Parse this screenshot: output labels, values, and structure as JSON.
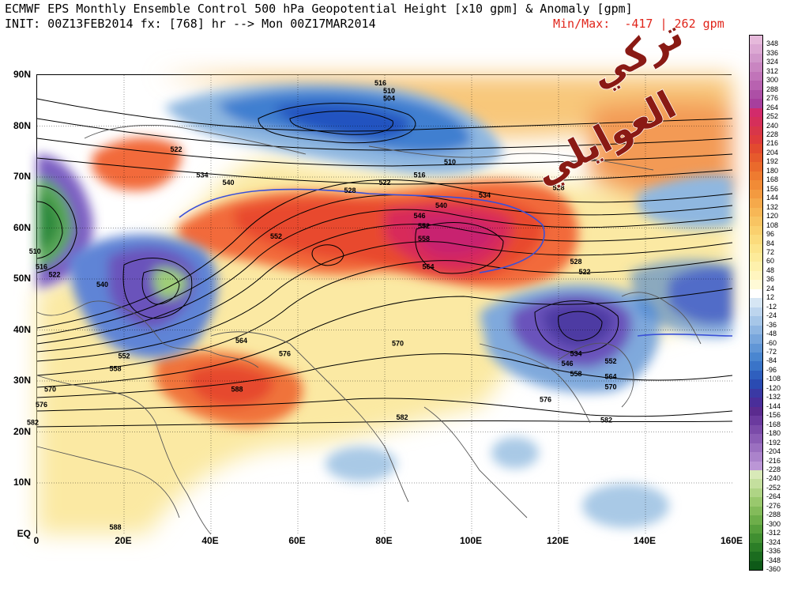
{
  "header": {
    "title": "ECMWF EPS Monthly Ensemble Control 500 hPa Geopotential Height [x10 gpm] & Anomaly [gpm]",
    "init_line": "INIT: 00Z13FEB2014 fx: [768] hr --> Mon 00Z17MAR2014",
    "minmax_label": "Min/Max:",
    "min_value": "-417",
    "separator": "|",
    "max_value": "262 gpm"
  },
  "axes": {
    "lat_labels": [
      "90N",
      "80N",
      "70N",
      "60N",
      "50N",
      "40N",
      "30N",
      "20N",
      "10N",
      "EQ"
    ],
    "lon_labels": [
      "0",
      "20E",
      "40E",
      "60E",
      "80E",
      "100E",
      "120E",
      "140E",
      "160E"
    ]
  },
  "contour_labels": [
    {
      "text": "516",
      "lon": 79,
      "lat": 88.5
    },
    {
      "text": "510",
      "lon": 81,
      "lat": 87
    },
    {
      "text": "504",
      "lon": 81,
      "lat": 85.5
    },
    {
      "text": "522",
      "lon": 32,
      "lat": 75.5
    },
    {
      "text": "534",
      "lon": 38,
      "lat": 70.5
    },
    {
      "text": "540",
      "lon": 44,
      "lat": 69
    },
    {
      "text": "528",
      "lon": 72,
      "lat": 67.5
    },
    {
      "text": "522",
      "lon": 80,
      "lat": 69
    },
    {
      "text": "516",
      "lon": 88,
      "lat": 70.5
    },
    {
      "text": "510",
      "lon": 95,
      "lat": 73
    },
    {
      "text": "534",
      "lon": 103,
      "lat": 66.5
    },
    {
      "text": "528",
      "lon": 120,
      "lat": 68
    },
    {
      "text": "540",
      "lon": 93,
      "lat": 64.5
    },
    {
      "text": "546",
      "lon": 88,
      "lat": 62.5
    },
    {
      "text": "552",
      "lon": 89,
      "lat": 60.5
    },
    {
      "text": "558",
      "lon": 89,
      "lat": 58
    },
    {
      "text": "552",
      "lon": 55,
      "lat": 58.5
    },
    {
      "text": "564",
      "lon": 90,
      "lat": 52.5
    },
    {
      "text": "528",
      "lon": 124,
      "lat": 53.5
    },
    {
      "text": "522",
      "lon": 126,
      "lat": 51.5
    },
    {
      "text": "510",
      "lon": -0.5,
      "lat": 55.5
    },
    {
      "text": "516",
      "lon": 1,
      "lat": 52.5
    },
    {
      "text": "522",
      "lon": 4,
      "lat": 51
    },
    {
      "text": "540",
      "lon": 15,
      "lat": 49
    },
    {
      "text": "564",
      "lon": 47,
      "lat": 38
    },
    {
      "text": "552",
      "lon": 20,
      "lat": 35
    },
    {
      "text": "558",
      "lon": 18,
      "lat": 32.5
    },
    {
      "text": "576",
      "lon": 57,
      "lat": 35.5
    },
    {
      "text": "570",
      "lon": 83,
      "lat": 37.5
    },
    {
      "text": "534",
      "lon": 124,
      "lat": 35.5
    },
    {
      "text": "546",
      "lon": 122,
      "lat": 33.5
    },
    {
      "text": "558",
      "lon": 124,
      "lat": 31.5
    },
    {
      "text": "552",
      "lon": 132,
      "lat": 34
    },
    {
      "text": "564",
      "lon": 132,
      "lat": 31
    },
    {
      "text": "570",
      "lon": 132,
      "lat": 29
    },
    {
      "text": "576",
      "lon": 117,
      "lat": 26.5
    },
    {
      "text": "582",
      "lon": 131,
      "lat": 22.5
    },
    {
      "text": "570",
      "lon": 3,
      "lat": 28.5
    },
    {
      "text": "576",
      "lon": 1,
      "lat": 25.5
    },
    {
      "text": "588",
      "lon": 46,
      "lat": 28.5
    },
    {
      "text": "582",
      "lon": 84,
      "lat": 23
    },
    {
      "text": "582",
      "lon": -1,
      "lat": 22
    },
    {
      "text": "588",
      "lon": 18,
      "lat": 1.5
    }
  ],
  "colorbar": {
    "labels": [
      "348",
      "336",
      "324",
      "312",
      "300",
      "288",
      "276",
      "264",
      "252",
      "240",
      "228",
      "216",
      "204",
      "192",
      "180",
      "168",
      "156",
      "144",
      "132",
      "120",
      "108",
      "96",
      "84",
      "72",
      "60",
      "48",
      "36",
      "24",
      "12",
      "-12",
      "-24",
      "-36",
      "-48",
      "-60",
      "-72",
      "-84",
      "-96",
      "-108",
      "-120",
      "-132",
      "-144",
      "-156",
      "-168",
      "-180",
      "-192",
      "-204",
      "-216",
      "-228",
      "-240",
      "-252",
      "-264",
      "-276",
      "-288",
      "-300",
      "-312",
      "-324",
      "-336",
      "-348",
      "-360"
    ]
  },
  "colors": {
    "ocean_bg": "#ffffff",
    "minmax_text": "#e0251b",
    "contour_line": "#000000",
    "contour_5700": "#3a50d8",
    "coastline": "#555555",
    "watermark_text": "#8a1a14"
  },
  "watermark": {
    "line1": "تركي",
    "line2": "العوايلي"
  }
}
